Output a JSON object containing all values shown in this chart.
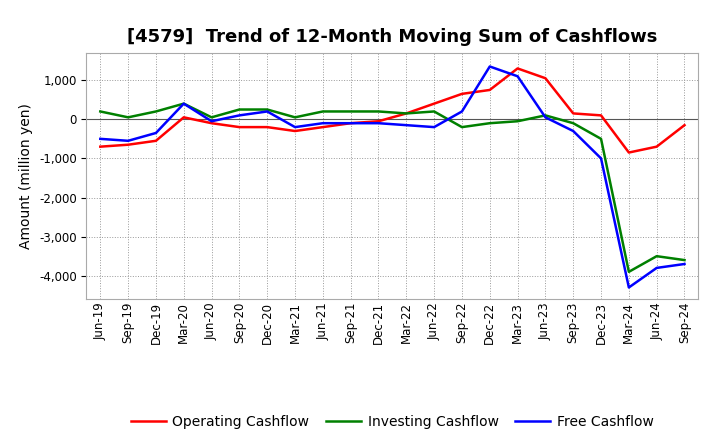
{
  "title": "[4579]  Trend of 12-Month Moving Sum of Cashflows",
  "ylabel": "Amount (million yen)",
  "x_labels": [
    "Jun-19",
    "Sep-19",
    "Dec-19",
    "Mar-20",
    "Jun-20",
    "Sep-20",
    "Dec-20",
    "Mar-21",
    "Jun-21",
    "Sep-21",
    "Dec-21",
    "Mar-22",
    "Jun-22",
    "Sep-22",
    "Dec-22",
    "Mar-23",
    "Jun-23",
    "Sep-23",
    "Dec-23",
    "Mar-24",
    "Jun-24",
    "Sep-24"
  ],
  "operating": [
    -700,
    -650,
    -550,
    50,
    -100,
    -200,
    -200,
    -300,
    -200,
    -100,
    -50,
    150,
    400,
    650,
    750,
    1300,
    1050,
    150,
    100,
    -850,
    -700,
    -150
  ],
  "investing": [
    200,
    50,
    200,
    400,
    50,
    250,
    250,
    50,
    200,
    200,
    200,
    150,
    200,
    -200,
    -100,
    -50,
    100,
    -100,
    -500,
    -3900,
    -3500,
    -3600
  ],
  "free": [
    -500,
    -550,
    -350,
    400,
    -50,
    100,
    200,
    -200,
    -100,
    -100,
    -100,
    -150,
    -200,
    200,
    1350,
    1100,
    50,
    -300,
    -1000,
    -4300,
    -3800,
    -3700
  ],
  "operating_color": "#ff0000",
  "investing_color": "#008000",
  "free_color": "#0000ff",
  "line_width": 1.8,
  "ylim": [
    -4600,
    1700
  ],
  "yticks": [
    -4000,
    -3000,
    -2000,
    -1000,
    0,
    1000
  ],
  "background_color": "#ffffff",
  "grid_color": "#999999",
  "title_fontsize": 13,
  "label_fontsize": 10,
  "tick_fontsize": 8.5
}
